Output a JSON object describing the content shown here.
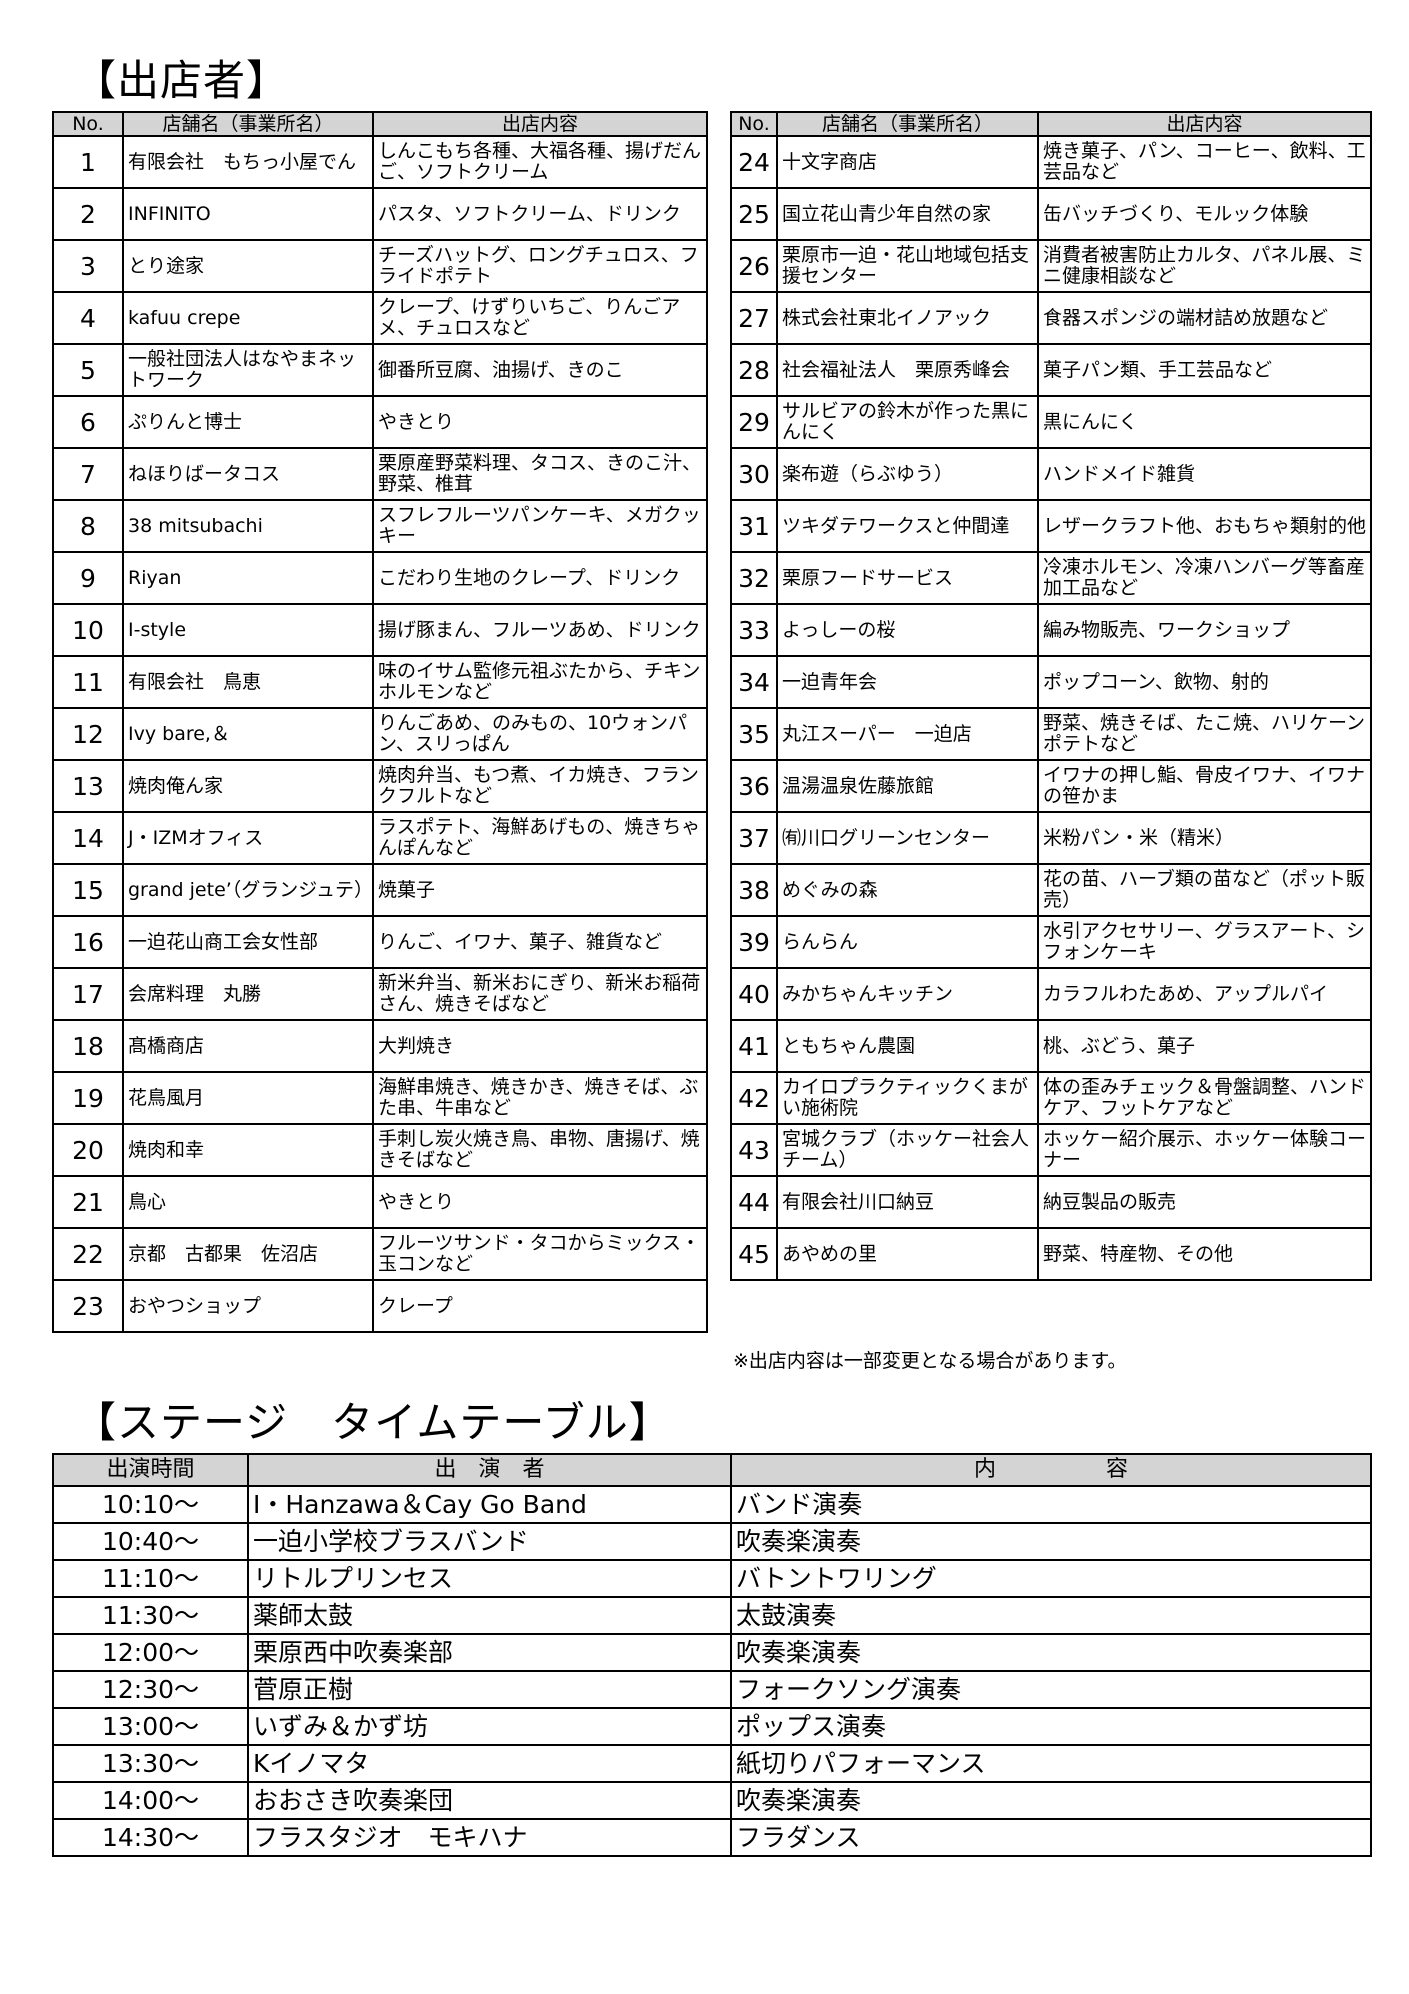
{
  "shops_title": "【出店者】",
  "headers": {
    "no": "No.",
    "name": "店舗名（事業所名）",
    "content": "出店内容"
  },
  "shops_left": [
    {
      "no": "1",
      "name": "有限会社　もちっ小屋でん",
      "content": "しんこもち各種、大福各種、揚げだんご、ソフトクリーム"
    },
    {
      "no": "2",
      "name": "INFINITO",
      "content": "パスタ、ソフトクリーム、ドリンク"
    },
    {
      "no": "3",
      "name": "とり途家",
      "content": "チーズハットグ、ロングチュロス、フライドポテト"
    },
    {
      "no": "4",
      "name": "kafuu crepe",
      "content": "クレープ、けずりいちご、りんごアメ、チュロスなど"
    },
    {
      "no": "5",
      "name": "一般社団法人はなやまネットワーク",
      "content": "御番所豆腐、油揚げ、きのこ"
    },
    {
      "no": "6",
      "name": "ぷりんと博士",
      "content": "やきとり"
    },
    {
      "no": "7",
      "name": "ねほりばータコス",
      "content": "栗原産野菜料理、タコス、きのこ汁、野菜、椎茸"
    },
    {
      "no": "8",
      "name": "38 mitsubachi",
      "content": "スフレフルーツパンケーキ、メガクッキー"
    },
    {
      "no": "9",
      "name": "Riyan",
      "content": "こだわり生地のクレープ、ドリンク"
    },
    {
      "no": "10",
      "name": "I-style",
      "content": "揚げ豚まん、フルーツあめ、ドリンク"
    },
    {
      "no": "11",
      "name": "有限会社　鳥恵",
      "content": "味のイサム監修元祖ぶたから、チキンホルモンなど"
    },
    {
      "no": "12",
      "name": "Ivy bare,＆",
      "content": "りんごあめ、のみもの、10ウォンパン、スリっぱん"
    },
    {
      "no": "13",
      "name": "焼肉俺ん家",
      "content": "焼肉弁当、もつ煮、イカ焼き、フランクフルトなど"
    },
    {
      "no": "14",
      "name": "J・IZMオフィス",
      "content": "ラスポテト、海鮮あげもの、焼きちゃんぽんなど"
    },
    {
      "no": "15",
      "name": "grand jete’（グランジュテ）",
      "content": "焼菓子"
    },
    {
      "no": "16",
      "name": "一迫花山商工会女性部",
      "content": "りんご、イワナ、菓子、雑貨など"
    },
    {
      "no": "17",
      "name": "会席料理　丸勝",
      "content": "新米弁当、新米おにぎり、新米お稲荷さん、焼きそばなど"
    },
    {
      "no": "18",
      "name": "髙橋商店",
      "content": "大判焼き"
    },
    {
      "no": "19",
      "name": "花鳥風月",
      "content": "海鮮串焼き、焼きかき、焼きそば、ぶた串、牛串など"
    },
    {
      "no": "20",
      "name": "焼肉和幸",
      "content": "手刺し炭火焼き鳥、串物、唐揚げ、焼きそばなど"
    },
    {
      "no": "21",
      "name": "鳥心",
      "content": "やきとり"
    },
    {
      "no": "22",
      "name": "京都　古都果　佐沼店",
      "content": "フルーツサンド・タコからミックス・玉コンなど"
    },
    {
      "no": "23",
      "name": "おやつショップ",
      "content": "クレープ"
    }
  ],
  "shops_right": [
    {
      "no": "24",
      "name": "十文字商店",
      "content": "焼き菓子、パン、コーヒー、飲料、工芸品など"
    },
    {
      "no": "25",
      "name": "国立花山青少年自然の家",
      "content": "缶バッチづくり、モルック体験"
    },
    {
      "no": "26",
      "name": "栗原市一迫・花山地域包括支援センター",
      "content": "消費者被害防止カルタ、パネル展、ミニ健康相談など"
    },
    {
      "no": "27",
      "name": "株式会社東北イノアック",
      "content": "食器スポンジの端材詰め放題など"
    },
    {
      "no": "28",
      "name": "社会福祉法人　栗原秀峰会",
      "content": "菓子パン類、手工芸品など"
    },
    {
      "no": "29",
      "name": "サルビアの鈴木が作った黒にんにく",
      "content": "黒にんにく"
    },
    {
      "no": "30",
      "name": "楽布遊（らぶゆう）",
      "content": "ハンドメイド雑貨"
    },
    {
      "no": "31",
      "name": "ツキダテワークスと仲間達",
      "content": "レザークラフト他、おもちゃ類射的他"
    },
    {
      "no": "32",
      "name": "栗原フードサービス",
      "content": "冷凍ホルモン、冷凍ハンバーグ等畜産加工品など"
    },
    {
      "no": "33",
      "name": "よっしーの桜",
      "content": "編み物販売、ワークショップ"
    },
    {
      "no": "34",
      "name": "一迫青年会",
      "content": "ポップコーン、飲物、射的"
    },
    {
      "no": "35",
      "name": "丸江スーパー　一迫店",
      "content": "野菜、焼きそば、たこ焼、ハリケーンポテトなど"
    },
    {
      "no": "36",
      "name": "温湯温泉佐藤旅館",
      "content": "イワナの押し鮨、骨皮イワナ、イワナの笹かま"
    },
    {
      "no": "37",
      "name": "㈲川口グリーンセンター",
      "content": "米粉パン・米（精米）"
    },
    {
      "no": "38",
      "name": "めぐみの森",
      "content": "花の苗、ハーブ類の苗など（ポット販売）"
    },
    {
      "no": "39",
      "name": "らんらん",
      "content": "水引アクセサリー、グラスアート、シフォンケーキ"
    },
    {
      "no": "40",
      "name": "みかちゃんキッチン",
      "content": "カラフルわたあめ、アップルパイ"
    },
    {
      "no": "41",
      "name": "ともちゃん農園",
      "content": "桃、ぶどう、菓子"
    },
    {
      "no": "42",
      "name": "カイロプラクティックくまがい施術院",
      "content": "体の歪みチェック＆骨盤調整、ハンドケア、フットケアなど"
    },
    {
      "no": "43",
      "name": "宮城クラブ（ホッケー社会人チーム）",
      "content": "ホッケー紹介展示、ホッケー体験コーナー"
    },
    {
      "no": "44",
      "name": "有限会社川口納豆",
      "content": "納豆製品の販売"
    },
    {
      "no": "45",
      "name": "あやめの里",
      "content": "野菜、特産物、その他"
    }
  ],
  "note": "※出店内容は一部変更となる場合があります。",
  "stage_title": "【ステージ　タイムテーブル】",
  "stage_headers": {
    "time": "出演時間",
    "performer": "出　演　者",
    "content": "内　　　　　容"
  },
  "stage": [
    {
      "time": "10:10～",
      "performer": "I・Hanzawa＆Cay Go Band",
      "content": "バンド演奏"
    },
    {
      "time": "10:40～",
      "performer": "一迫小学校ブラスバンド",
      "content": "吹奏楽演奏"
    },
    {
      "time": "11:10～",
      "performer": "リトルプリンセス",
      "content": "バトントワリング"
    },
    {
      "time": "11:30～",
      "performer": "薬師太鼓",
      "content": "太鼓演奏"
    },
    {
      "time": "12:00～",
      "performer": "栗原西中吹奏楽部",
      "content": "吹奏楽演奏"
    },
    {
      "time": "12:30～",
      "performer": "菅原正樹",
      "content": "フォークソング演奏"
    },
    {
      "time": "13:00～",
      "performer": "いずみ＆かず坊",
      "content": "ポップス演奏"
    },
    {
      "time": "13:30～",
      "performer": "Kイノマタ",
      "content": "紙切りパフォーマンス"
    },
    {
      "time": "14:00～",
      "performer": "おおさき吹奏楽団",
      "content": "吹奏楽演奏"
    },
    {
      "time": "14:30～",
      "performer": "フラスタジオ　モキハナ",
      "content": "フラダンス"
    }
  ]
}
